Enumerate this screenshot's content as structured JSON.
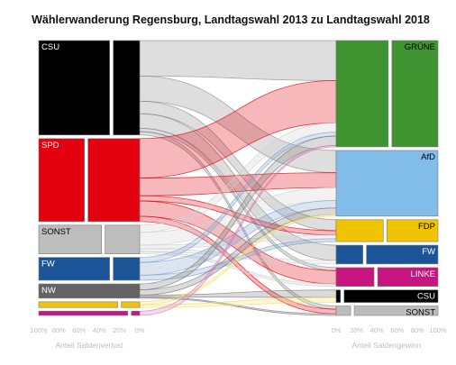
{
  "chart_data": {
    "type": "alluvial",
    "title": "Wählerwanderung Regensburg, Landtagswahl 2013 zu Landtagswahl 2018",
    "left_axis_label": "Anteil Saldenverlust",
    "right_axis_label": "Anteil Saldengewinn",
    "left_ticks": [
      "100%",
      "80%",
      "60%",
      "40%",
      "20%",
      "0%"
    ],
    "right_ticks": [
      "0%",
      "20%",
      "40%",
      "60%",
      "80%",
      "100%"
    ],
    "sources": [
      {
        "name": "CSU",
        "label": "CSU",
        "color": "#000000",
        "share": 0.33,
        "loss_fraction": 0.28
      },
      {
        "name": "SPD",
        "label": "SPD",
        "color": "#e3000f",
        "share": 0.29,
        "loss_fraction": 0.53
      },
      {
        "name": "SONST",
        "label": "SONST",
        "color": "#bdbdbd",
        "share": 0.1,
        "loss_fraction": 0.36
      },
      {
        "name": "FW",
        "label": "FW",
        "color": "#1b5598",
        "share": 0.08,
        "loss_fraction": 0.28
      },
      {
        "name": "NW",
        "label": "NW",
        "color": "#636363",
        "share": 0.05,
        "loss_fraction": 0.0
      },
      {
        "name": "FDP",
        "label": "",
        "color": "#f0c400",
        "share": 0.02,
        "loss_fraction": 0.2
      },
      {
        "name": "LINKE",
        "label": "",
        "color": "#c8147e",
        "share": 0.015,
        "loss_fraction": 0.1
      }
    ],
    "targets": [
      {
        "name": "GRÜNE",
        "label": "GRÜNE",
        "color": "#3f9431",
        "share": 0.34,
        "gain_fraction": 0.53
      },
      {
        "name": "AfD",
        "label": "AfD",
        "color": "#82bce8",
        "share": 0.21,
        "gain_fraction": 1.0
      },
      {
        "name": "FDP",
        "label": "FDP",
        "color": "#f0c400",
        "share": 0.07,
        "gain_fraction": 0.48
      },
      {
        "name": "FW",
        "label": "FW",
        "color": "#1b5598",
        "share": 0.06,
        "gain_fraction": 0.28
      },
      {
        "name": "LINKE",
        "label": "LINKE",
        "color": "#c8147e",
        "share": 0.06,
        "gain_fraction": 0.39
      },
      {
        "name": "CSU",
        "label": "CSU",
        "color": "#000000",
        "share": 0.04,
        "gain_fraction": 0.06
      },
      {
        "name": "SONST",
        "label": "SONST",
        "color": "#bdbdbd",
        "share": 0.03,
        "gain_fraction": 0.16
      }
    ],
    "flows": [
      {
        "from": "CSU",
        "to": "GRÜNE",
        "value": 0.085
      },
      {
        "from": "CSU",
        "to": "AfD",
        "value": 0.06
      },
      {
        "from": "CSU",
        "to": "FDP",
        "value": 0.03
      },
      {
        "from": "CSU",
        "to": "FW",
        "value": 0.035
      },
      {
        "from": "CSU",
        "to": "LINKE",
        "value": 0.008
      },
      {
        "from": "CSU",
        "to": "SONST",
        "value": 0.008
      },
      {
        "from": "SPD",
        "to": "GRÜNE",
        "value": 0.09
      },
      {
        "from": "SPD",
        "to": "AfD",
        "value": 0.04
      },
      {
        "from": "SPD",
        "to": "FDP",
        "value": 0.012
      },
      {
        "from": "SPD",
        "to": "LINKE",
        "value": 0.035
      },
      {
        "from": "SPD",
        "to": "SONST",
        "value": 0.012
      },
      {
        "from": "SONST",
        "to": "GRÜNE",
        "value": 0.02
      },
      {
        "from": "SONST",
        "to": "AfD",
        "value": 0.035
      },
      {
        "from": "SONST",
        "to": "FDP",
        "value": 0.01
      },
      {
        "from": "SONST",
        "to": "FW",
        "value": 0.008
      },
      {
        "from": "SONST",
        "to": "LINKE",
        "value": 0.006
      },
      {
        "from": "FW",
        "to": "GRÜNE",
        "value": 0.008
      },
      {
        "from": "FW",
        "to": "AfD",
        "value": 0.02
      },
      {
        "from": "FW",
        "to": "FDP",
        "value": 0.008
      },
      {
        "from": "NW",
        "to": "GRÜNE",
        "value": 0.02
      },
      {
        "from": "NW",
        "to": "AfD",
        "value": 0.018
      },
      {
        "from": "NW",
        "to": "CSU",
        "value": 0.006
      },
      {
        "from": "NW",
        "to": "SONST",
        "value": 0.004
      },
      {
        "from": "FDP",
        "to": "AfD",
        "value": 0.004
      },
      {
        "from": "FDP",
        "to": "CSU",
        "value": 0.004
      },
      {
        "from": "LINKE",
        "to": "GRÜNE",
        "value": 0.003
      }
    ]
  }
}
